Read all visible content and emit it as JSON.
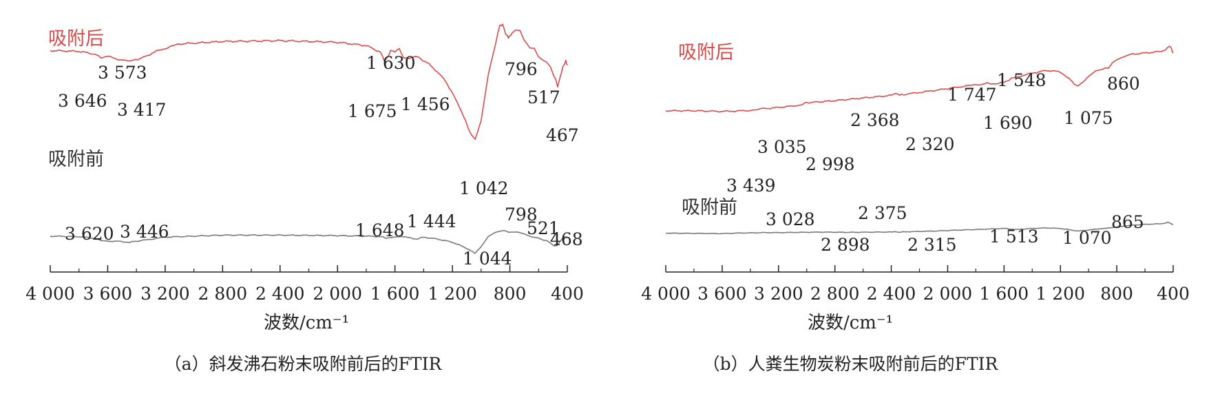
{
  "colors": {
    "after": "#d94a4a",
    "before": "#7a7a7a",
    "axis": "#222222",
    "text": "#222222"
  },
  "chart_data": [
    {
      "type": "line",
      "panel": "a",
      "caption": "（a）斜发沸石粉末吸附前后的FTIR",
      "xlabel": "波数/cm⁻¹",
      "x_reversed": true,
      "xlim": [
        4000,
        400
      ],
      "xticks": [
        4000,
        3600,
        3200,
        2800,
        2400,
        2000,
        1600,
        1200,
        800,
        400
      ],
      "xtick_labels": [
        "4 000",
        "3 600",
        "3 200",
        "2 800",
        "2 400",
        "2 000",
        "1 600",
        "1 200",
        "800",
        "400"
      ],
      "y_scale": "relative",
      "ylim": [
        0,
        100
      ],
      "series": [
        {
          "name": "吸附后",
          "color_key": "after",
          "points": [
            [
              4000,
              84
            ],
            [
              3800,
              83.5
            ],
            [
              3700,
              82
            ],
            [
              3646,
              80
            ],
            [
              3600,
              80.5
            ],
            [
              3573,
              80
            ],
            [
              3500,
              78
            ],
            [
              3417,
              78
            ],
            [
              3350,
              80
            ],
            [
              3250,
              84
            ],
            [
              3100,
              88
            ],
            [
              2800,
              89.5
            ],
            [
              2400,
              90
            ],
            [
              2000,
              89
            ],
            [
              1800,
              87
            ],
            [
              1700,
              83
            ],
            [
              1675,
              78
            ],
            [
              1650,
              80
            ],
            [
              1630,
              84
            ],
            [
              1600,
              83
            ],
            [
              1570,
              85
            ],
            [
              1540,
              80
            ],
            [
              1500,
              79
            ],
            [
              1456,
              81
            ],
            [
              1420,
              79
            ],
            [
              1350,
              75
            ],
            [
              1250,
              66
            ],
            [
              1150,
              50
            ],
            [
              1080,
              35
            ],
            [
              1042,
              30
            ],
            [
              1000,
              42
            ],
            [
              950,
              70
            ],
            [
              900,
              88
            ],
            [
              870,
              99
            ],
            [
              850,
              100
            ],
            [
              830,
              94
            ],
            [
              810,
              92
            ],
            [
              796,
              93
            ],
            [
              760,
              97
            ],
            [
              730,
              96
            ],
            [
              700,
              90
            ],
            [
              660,
              86
            ],
            [
              630,
              85
            ],
            [
              600,
              80
            ],
            [
              560,
              78
            ],
            [
              517,
              74
            ],
            [
              500,
              70
            ],
            [
              480,
              66
            ],
            [
              467,
              62
            ],
            [
              450,
              68
            ],
            [
              430,
              74
            ],
            [
              410,
              78
            ],
            [
              400,
              75
            ]
          ]
        },
        {
          "name": "吸附前",
          "color_key": "before",
          "points": [
            [
              4000,
              30
            ],
            [
              3800,
              29.5
            ],
            [
              3700,
              28
            ],
            [
              3620,
              25
            ],
            [
              3550,
              25
            ],
            [
              3446,
              24
            ],
            [
              3350,
              26
            ],
            [
              3200,
              29
            ],
            [
              2800,
              31
            ],
            [
              2400,
              31
            ],
            [
              2000,
              30.5
            ],
            [
              1800,
              30
            ],
            [
              1700,
              29.5
            ],
            [
              1648,
              28
            ],
            [
              1600,
              29
            ],
            [
              1550,
              29.5
            ],
            [
              1500,
              28.5
            ],
            [
              1444,
              27
            ],
            [
              1400,
              29
            ],
            [
              1300,
              27
            ],
            [
              1200,
              24
            ],
            [
              1100,
              18
            ],
            [
              1044,
              13
            ],
            [
              1000,
              20
            ],
            [
              950,
              30
            ],
            [
              900,
              34
            ],
            [
              850,
              35.5
            ],
            [
              798,
              34
            ],
            [
              750,
              34
            ],
            [
              700,
              32
            ],
            [
              650,
              29
            ],
            [
              600,
              28
            ],
            [
              560,
              26
            ],
            [
              521,
              24
            ],
            [
              500,
              21
            ],
            [
              480,
              20
            ],
            [
              468,
              21
            ],
            [
              450,
              25
            ],
            [
              420,
              30
            ],
            [
              400,
              28
            ]
          ]
        }
      ],
      "annotations": [
        {
          "text": "3 646",
          "series": "吸附后"
        },
        {
          "text": "3 573",
          "series": "吸附后"
        },
        {
          "text": "3 417",
          "series": "吸附后"
        },
        {
          "text": "1 630",
          "series": "吸附后"
        },
        {
          "text": "1 675",
          "series": "吸附后"
        },
        {
          "text": "1 456",
          "series": "吸附后"
        },
        {
          "text": "796",
          "series": "吸附后"
        },
        {
          "text": "517",
          "series": "吸附后"
        },
        {
          "text": "467",
          "series": "吸附后"
        },
        {
          "text": "1 042",
          "series": "吸附后"
        },
        {
          "text": "3 620",
          "series": "吸附前"
        },
        {
          "text": "3 446",
          "series": "吸附前"
        },
        {
          "text": "1 648",
          "series": "吸附前"
        },
        {
          "text": "1 444",
          "series": "吸附前"
        },
        {
          "text": "798",
          "series": "吸附前"
        },
        {
          "text": "521",
          "series": "吸附前"
        },
        {
          "text": "468",
          "series": "吸附前"
        },
        {
          "text": "1 044",
          "series": "吸附前"
        }
      ]
    },
    {
      "type": "line",
      "panel": "b",
      "caption": "（b）人粪生物炭粉末吸附前后的FTIR",
      "xlabel": "波数/cm⁻¹",
      "x_reversed": true,
      "xlim": [
        4000,
        400
      ],
      "xticks": [
        4000,
        3600,
        3200,
        2800,
        2400,
        2000,
        1600,
        1200,
        800,
        400
      ],
      "xtick_labels": [
        "4 000",
        "3 600",
        "3 200",
        "2 800",
        "2 400",
        "2 000",
        "1 600",
        "1 200",
        "800",
        "400"
      ],
      "y_scale": "relative",
      "ylim": [
        0,
        100
      ],
      "series": [
        {
          "name": "吸附后",
          "color_key": "after",
          "points": [
            [
              4000,
              56
            ],
            [
              3800,
              56
            ],
            [
              3600,
              55.5
            ],
            [
              3439,
              56
            ],
            [
              3300,
              57.5
            ],
            [
              3100,
              59.5
            ],
            [
              3035,
              61
            ],
            [
              2998,
              62
            ],
            [
              2800,
              63.5
            ],
            [
              2600,
              65.5
            ],
            [
              2400,
              67.5
            ],
            [
              2368,
              69
            ],
            [
              2340,
              68
            ],
            [
              2320,
              68
            ],
            [
              2100,
              71
            ],
            [
              1900,
              74
            ],
            [
              1747,
              76
            ],
            [
              1720,
              76.5
            ],
            [
              1690,
              76
            ],
            [
              1600,
              77
            ],
            [
              1548,
              80
            ],
            [
              1400,
              84
            ],
            [
              1300,
              86
            ],
            [
              1200,
              85
            ],
            [
              1140,
              80
            ],
            [
              1100,
              76
            ],
            [
              1075,
              74
            ],
            [
              1040,
              77
            ],
            [
              1000,
              82
            ],
            [
              950,
              86
            ],
            [
              900,
              87
            ],
            [
              860,
              88
            ],
            [
              830,
              92
            ],
            [
              800,
              94
            ],
            [
              750,
              96
            ],
            [
              700,
              98
            ],
            [
              600,
              99
            ],
            [
              500,
              100
            ],
            [
              460,
              101
            ],
            [
              440,
              103
            ],
            [
              420,
              104
            ],
            [
              405,
              100
            ],
            [
              400,
              99
            ]
          ]
        },
        {
          "name": "吸附前",
          "color_key": "before",
          "points": [
            [
              4000,
              22
            ],
            [
              3800,
              21.5
            ],
            [
              3600,
              21
            ],
            [
              3500,
              22
            ],
            [
              3300,
              23
            ],
            [
              3200,
              23
            ],
            [
              3028,
              23.5
            ],
            [
              2898,
              24
            ],
            [
              2700,
              23.5
            ],
            [
              2500,
              24
            ],
            [
              2400,
              24
            ],
            [
              2375,
              25
            ],
            [
              2340,
              24
            ],
            [
              2315,
              24.5
            ],
            [
              2100,
              26
            ],
            [
              1900,
              28
            ],
            [
              1700,
              30
            ],
            [
              1600,
              31
            ],
            [
              1513,
              29
            ],
            [
              1400,
              31
            ],
            [
              1300,
              32
            ],
            [
              1200,
              31
            ],
            [
              1100,
              27
            ],
            [
              1070,
              26
            ],
            [
              1000,
              28
            ],
            [
              900,
              31
            ],
            [
              865,
              32
            ],
            [
              800,
              34
            ],
            [
              700,
              37
            ],
            [
              600,
              39
            ],
            [
              500,
              40
            ],
            [
              460,
              41
            ],
            [
              440,
              43
            ],
            [
              420,
              41
            ],
            [
              400,
              38
            ]
          ]
        }
      ],
      "annotations": [
        {
          "text": "3 439",
          "series": "吸附后"
        },
        {
          "text": "3 035",
          "series": "吸附后"
        },
        {
          "text": "2 998",
          "series": "吸附后"
        },
        {
          "text": "2 368",
          "series": "吸附后"
        },
        {
          "text": "2 320",
          "series": "吸附后"
        },
        {
          "text": "1 747",
          "series": "吸附后"
        },
        {
          "text": "1 548",
          "series": "吸附后"
        },
        {
          "text": "1 690",
          "series": "吸附后"
        },
        {
          "text": "1 075",
          "series": "吸附后"
        },
        {
          "text": "860",
          "series": "吸附后"
        },
        {
          "text": "3 028",
          "series": "吸附前"
        },
        {
          "text": "2 898",
          "series": "吸附前"
        },
        {
          "text": "2 375",
          "series": "吸附前"
        },
        {
          "text": "2 315",
          "series": "吸附前"
        },
        {
          "text": "1 513",
          "series": "吸附前"
        },
        {
          "text": "1 070",
          "series": "吸附前"
        },
        {
          "text": "865",
          "series": "吸附前"
        }
      ]
    }
  ]
}
